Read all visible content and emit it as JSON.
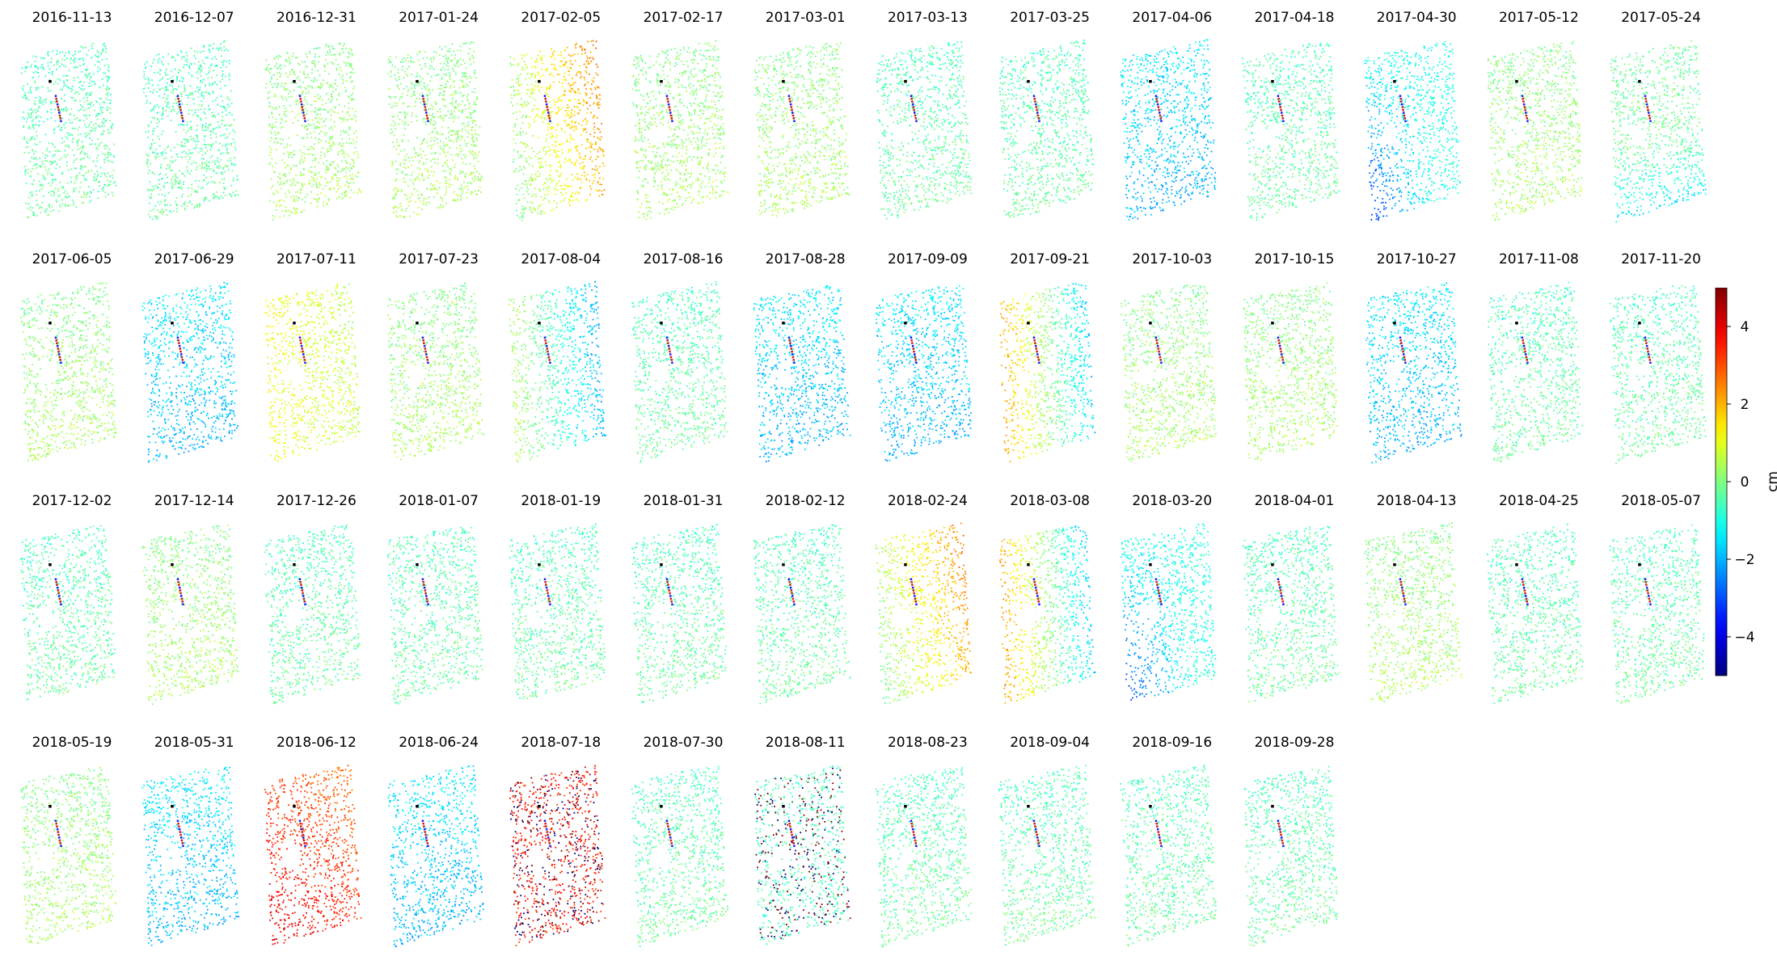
{
  "chart_data": {
    "type": "heatmap",
    "description": "Small-multiple displacement maps, one per acquisition date, sharing a jet colorbar",
    "panels": [
      {
        "date": "2016-11-13",
        "pattern": "neutral"
      },
      {
        "date": "2016-12-07",
        "pattern": "neutral"
      },
      {
        "date": "2016-12-31",
        "pattern": "neutral-warm"
      },
      {
        "date": "2017-01-24",
        "pattern": "neutral-warm"
      },
      {
        "date": "2017-02-05",
        "pattern": "warm-east"
      },
      {
        "date": "2017-02-17",
        "pattern": "neutral-warm"
      },
      {
        "date": "2017-03-01",
        "pattern": "neutral-warm"
      },
      {
        "date": "2017-03-13",
        "pattern": "neutral"
      },
      {
        "date": "2017-03-25",
        "pattern": "neutral"
      },
      {
        "date": "2017-04-06",
        "pattern": "cool"
      },
      {
        "date": "2017-04-18",
        "pattern": "neutral"
      },
      {
        "date": "2017-04-30",
        "pattern": "strong-cool-south"
      },
      {
        "date": "2017-05-12",
        "pattern": "neutral-warm"
      },
      {
        "date": "2017-05-24",
        "pattern": "cool-south"
      },
      {
        "date": "2017-06-05",
        "pattern": "neutral-warm"
      },
      {
        "date": "2017-06-29",
        "pattern": "cool"
      },
      {
        "date": "2017-07-11",
        "pattern": "warm"
      },
      {
        "date": "2017-07-23",
        "pattern": "neutral-warm"
      },
      {
        "date": "2017-08-04",
        "pattern": "cool-east"
      },
      {
        "date": "2017-08-16",
        "pattern": "neutral"
      },
      {
        "date": "2017-08-28",
        "pattern": "cool"
      },
      {
        "date": "2017-09-09",
        "pattern": "cool"
      },
      {
        "date": "2017-09-21",
        "pattern": "warm-west-cool-east"
      },
      {
        "date": "2017-10-03",
        "pattern": "neutral-warm"
      },
      {
        "date": "2017-10-15",
        "pattern": "neutral-warm"
      },
      {
        "date": "2017-10-27",
        "pattern": "cool"
      },
      {
        "date": "2017-11-08",
        "pattern": "neutral"
      },
      {
        "date": "2017-11-20",
        "pattern": "neutral"
      },
      {
        "date": "2017-12-02",
        "pattern": "neutral"
      },
      {
        "date": "2017-12-14",
        "pattern": "neutral-warm"
      },
      {
        "date": "2017-12-26",
        "pattern": "neutral"
      },
      {
        "date": "2018-01-07",
        "pattern": "neutral"
      },
      {
        "date": "2018-01-19",
        "pattern": "neutral"
      },
      {
        "date": "2018-01-31",
        "pattern": "neutral"
      },
      {
        "date": "2018-02-12",
        "pattern": "neutral"
      },
      {
        "date": "2018-02-24",
        "pattern": "warm-east"
      },
      {
        "date": "2018-03-08",
        "pattern": "warm-west-cool-east"
      },
      {
        "date": "2018-03-20",
        "pattern": "strong-cool-south"
      },
      {
        "date": "2018-04-01",
        "pattern": "neutral"
      },
      {
        "date": "2018-04-13",
        "pattern": "neutral-warm"
      },
      {
        "date": "2018-04-25",
        "pattern": "neutral"
      },
      {
        "date": "2018-05-07",
        "pattern": "neutral"
      },
      {
        "date": "2018-05-19",
        "pattern": "neutral-warm"
      },
      {
        "date": "2018-05-31",
        "pattern": "cool"
      },
      {
        "date": "2018-06-12",
        "pattern": "hot"
      },
      {
        "date": "2018-06-24",
        "pattern": "cool"
      },
      {
        "date": "2018-07-18",
        "pattern": "hot-noisy"
      },
      {
        "date": "2018-07-30",
        "pattern": "neutral"
      },
      {
        "date": "2018-08-11",
        "pattern": "noisy"
      },
      {
        "date": "2018-08-23",
        "pattern": "neutral"
      },
      {
        "date": "2018-09-04",
        "pattern": "neutral"
      },
      {
        "date": "2018-09-16",
        "pattern": "neutral"
      },
      {
        "date": "2018-09-28",
        "pattern": "neutral"
      }
    ],
    "colorbar": {
      "label": "cm",
      "colormap": "jet",
      "range": [
        -5,
        5
      ],
      "ticks": [
        -4,
        -2,
        0,
        2,
        4
      ],
      "tick_labels": [
        "−4",
        "−2",
        "0",
        "2",
        "4"
      ]
    },
    "grid": {
      "columns": 14,
      "rows": 4
    }
  }
}
